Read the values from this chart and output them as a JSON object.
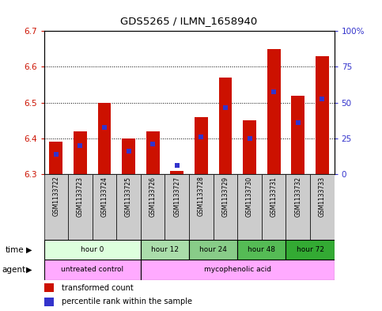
{
  "title": "GDS5265 / ILMN_1658940",
  "samples": [
    "GSM1133722",
    "GSM1133723",
    "GSM1133724",
    "GSM1133725",
    "GSM1133726",
    "GSM1133727",
    "GSM1133728",
    "GSM1133729",
    "GSM1133730",
    "GSM1133731",
    "GSM1133732",
    "GSM1133733"
  ],
  "bar_tops": [
    6.39,
    6.42,
    6.5,
    6.4,
    6.42,
    6.31,
    6.46,
    6.57,
    6.45,
    6.65,
    6.52,
    6.63
  ],
  "bar_base": 6.3,
  "blue_dot_values": [
    6.355,
    6.38,
    6.43,
    6.365,
    6.385,
    6.325,
    6.405,
    6.485,
    6.4,
    6.53,
    6.445,
    6.51
  ],
  "ylim": [
    6.3,
    6.7
  ],
  "yticks_left": [
    6.3,
    6.4,
    6.5,
    6.6,
    6.7
  ],
  "yticks_right_vals": [
    0,
    25,
    50,
    75,
    100
  ],
  "yticks_right_labels": [
    "0",
    "25",
    "50",
    "75",
    "100%"
  ],
  "bar_color": "#cc1100",
  "dot_color": "#3333cc",
  "plot_bg": "#ffffff",
  "label_bg": "#cccccc",
  "time_groups": [
    {
      "label": "hour 0",
      "start": 0,
      "end": 3,
      "color": "#ddffdd"
    },
    {
      "label": "hour 12",
      "start": 4,
      "end": 5,
      "color": "#aaddaa"
    },
    {
      "label": "hour 24",
      "start": 6,
      "end": 7,
      "color": "#88cc88"
    },
    {
      "label": "hour 48",
      "start": 8,
      "end": 9,
      "color": "#55bb55"
    },
    {
      "label": "hour 72",
      "start": 10,
      "end": 11,
      "color": "#33aa33"
    }
  ],
  "agent_groups": [
    {
      "label": "untreated control",
      "start": 0,
      "end": 3,
      "color": "#ffaaff"
    },
    {
      "label": "mycophenolic acid",
      "start": 4,
      "end": 11,
      "color": "#ffaaff"
    }
  ],
  "legend_items": [
    {
      "color": "#cc1100",
      "label": "transformed count"
    },
    {
      "color": "#3333cc",
      "label": "percentile rank within the sample"
    }
  ]
}
